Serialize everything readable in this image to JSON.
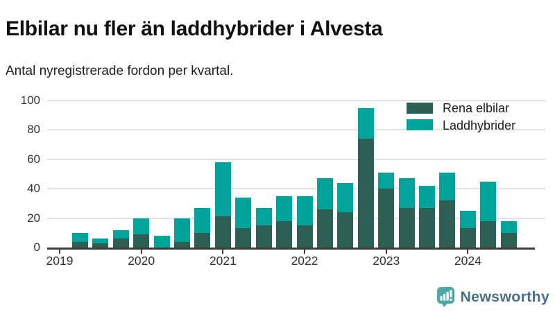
{
  "title": "Elbilar nu fler än laddhybrider i Alvesta",
  "subtitle": "Antal nyregistrerade fordon per kvartal.",
  "legend": [
    {
      "label": "Rena elbilar",
      "color": "#2e5f55"
    },
    {
      "label": "Laddhybrider",
      "color": "#00a49a"
    }
  ],
  "chart_data": {
    "type": "bar",
    "stacked": true,
    "title": "Elbilar nu fler än laddhybrider i Alvesta",
    "subtitle": "Antal nyregistrerade fordon per kvartal.",
    "ylabel": "",
    "xlabel": "",
    "ylim": [
      0,
      100
    ],
    "yticks": [
      0,
      20,
      40,
      60,
      80,
      100
    ],
    "grid": true,
    "legend_position": "top-right",
    "x_tick_labels": [
      "2019",
      "2020",
      "2021",
      "2022",
      "2023",
      "2024"
    ],
    "quarters": [
      "2019 Q1",
      "2019 Q2",
      "2019 Q3",
      "2019 Q4",
      "2020 Q1",
      "2020 Q2",
      "2020 Q3",
      "2020 Q4",
      "2021 Q1",
      "2021 Q2",
      "2021 Q3",
      "2021 Q4",
      "2022 Q1",
      "2022 Q2",
      "2022 Q3",
      "2022 Q4",
      "2023 Q1",
      "2023 Q2",
      "2023 Q3",
      "2023 Q4",
      "2024 Q1",
      "2024 Q2",
      "2024 Q3"
    ],
    "series": [
      {
        "name": "Rena elbilar",
        "color": "#2e5f55",
        "values": [
          0,
          4,
          3,
          6,
          9,
          0,
          4,
          10,
          21,
          13,
          15,
          18,
          15,
          26,
          24,
          74,
          40,
          27,
          27,
          32,
          13,
          18,
          10
        ]
      },
      {
        "name": "Laddhybrider",
        "color": "#00a49a",
        "values": [
          0,
          6,
          3,
          6,
          11,
          8,
          16,
          17,
          37,
          21,
          12,
          17,
          20,
          21,
          20,
          21,
          11,
          20,
          15,
          19,
          12,
          27,
          8
        ]
      }
    ]
  },
  "footer": {
    "brand": "Newsworthy"
  },
  "colors": {
    "series_dark": "#2e5f55",
    "series_teal": "#00a49a",
    "grid": "#e3e3e3",
    "axis": "#3d3d3d",
    "text": "#222222",
    "brand_text": "#4a7187",
    "brand_icon": "#4da9a2"
  }
}
